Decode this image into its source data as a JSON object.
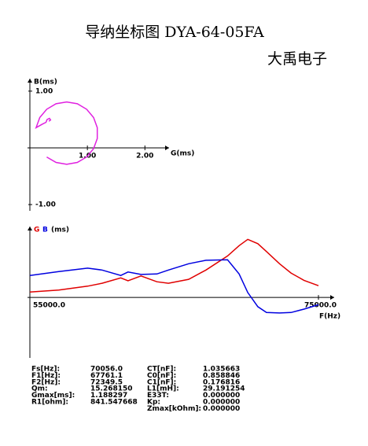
{
  "header": {
    "title": "导纳坐标图  DYA-64-05FA",
    "brand": "大禹电子"
  },
  "chart_data": [
    {
      "type": "line",
      "x_label": "G(ms)",
      "y_label": "B(ms)",
      "x": [
        0.33,
        0.36,
        0.34,
        0.3,
        0.28,
        0.22,
        0.108,
        0.172,
        0.293,
        0.455,
        0.64,
        0.825,
        0.987,
        1.108,
        1.172,
        1.172,
        1.108,
        0.987,
        0.825,
        0.64,
        0.455,
        0.293
      ],
      "series": [
        {
          "color": "#e020e0",
          "values": [
            0.47,
            0.49,
            0.52,
            0.5,
            0.45,
            0.42,
            0.356,
            0.535,
            0.681,
            0.777,
            0.81,
            0.777,
            0.681,
            0.535,
            0.356,
            0.164,
            -0.015,
            -0.161,
            -0.257,
            -0.29,
            -0.257,
            -0.161
          ]
        }
      ],
      "xlim": [
        0,
        2.42
      ],
      "ylim": [
        -1.11,
        1.22
      ],
      "xticks": [
        {
          "value": 1,
          "label": "1.00"
        },
        {
          "value": 2,
          "label": "2.00"
        }
      ],
      "yticks": [
        {
          "value": 1,
          "label": "1.00"
        },
        {
          "value": -1,
          "label": "-1.00"
        }
      ]
    },
    {
      "type": "line",
      "x_label": "F(Hz)",
      "y_label": "(ms)",
      "x": [
        55000,
        57000,
        59000,
        60000,
        61300,
        61800,
        62700,
        63800,
        64600,
        66000,
        67200,
        68700,
        69500,
        70100,
        70800,
        71400,
        72300,
        73100,
        74000,
        75000
      ],
      "series": [
        {
          "name": "G",
          "color": "#e00000",
          "values": [
            0.11,
            0.15,
            0.23,
            0.29,
            0.4,
            0.34,
            0.44,
            0.32,
            0.29,
            0.37,
            0.56,
            0.85,
            1.06,
            1.19,
            1.1,
            0.94,
            0.69,
            0.5,
            0.35,
            0.24
          ]
        },
        {
          "name": "B",
          "color": "#0000e0",
          "values": [
            0.45,
            0.53,
            0.6,
            0.56,
            0.45,
            0.52,
            0.47,
            0.48,
            0.56,
            0.69,
            0.76,
            0.77,
            0.48,
            0.1,
            -0.19,
            -0.31,
            -0.32,
            -0.31,
            -0.24,
            -0.15
          ]
        }
      ],
      "xlim": [
        55000,
        75000
      ],
      "ylim": [
        -1.24,
        1.42
      ],
      "xticks": [
        {
          "value": 55000,
          "label": "55000.0"
        },
        {
          "value": 75000,
          "label": "75000.0"
        }
      ]
    }
  ],
  "table": {
    "left": [
      [
        "Fs[Hz]:",
        "70056.0"
      ],
      [
        "F1[Hz]:",
        "67761.1"
      ],
      [
        "F2[Hz]:",
        "72349.5"
      ],
      [
        "Qm:",
        "15.268150"
      ],
      [
        "Gmax[ms]:",
        "1.188297"
      ],
      [
        "R1[ohm]:",
        "841.547668"
      ]
    ],
    "right": [
      [
        "CT[nF]:",
        "1.035663"
      ],
      [
        "C0[nF]:",
        "0.858846"
      ],
      [
        "C1[nF]:",
        "0.176816"
      ],
      [
        "L1[mH]:",
        "29.191254"
      ],
      [
        "E33T:",
        "0.000000"
      ],
      [
        "Kp:",
        "0.000000"
      ],
      [
        "Zmax[kOhm]:",
        "0.000000"
      ]
    ]
  }
}
